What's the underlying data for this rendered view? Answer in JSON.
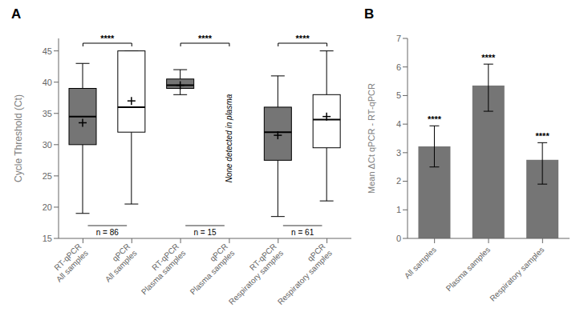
{
  "chart_data": [
    {
      "type": "box",
      "title": "A",
      "categories": [
        "RT-qPCR\nAll samples",
        "qPCR\nAll samples",
        "RT-qPCR\nPlasma samples",
        "qPCR\nPlasma samples",
        "RT-qPCR\nRespiratory samples",
        "qPCR\nRespiratory samples"
      ],
      "median": [
        34.5,
        36.0,
        39.5,
        null,
        32.0,
        34.0
      ],
      "q1": [
        30.0,
        32.0,
        39.0,
        null,
        27.5,
        29.5
      ],
      "q3": [
        39.0,
        45.0,
        40.5,
        null,
        36.0,
        38.0
      ],
      "whisker_low": [
        19.0,
        20.5,
        38.0,
        null,
        18.5,
        21.0
      ],
      "whisker_high": [
        43.0,
        45.0,
        42.0,
        null,
        41.0,
        45.0
      ],
      "mean": [
        33.5,
        37.0,
        39.5,
        null,
        31.5,
        34.5
      ],
      "colors": [
        "#757575",
        "#ffffff",
        "#757575",
        "#ffffff",
        "#757575",
        "#ffffff"
      ],
      "color": "#000000",
      "ylabel": "Cycle Threshold (Ct)",
      "ylim": [
        15,
        47
      ],
      "yticks": [
        15,
        20,
        25,
        30,
        35,
        40,
        45
      ],
      "grid": false,
      "brackets": [
        {
          "from": "RT-qPCR\nAll samples",
          "to": "qPCR\nAll samples",
          "text": "****"
        },
        {
          "from": "RT-qPCR\nPlasma samples",
          "to": "qPCR\nPlasma samples",
          "text": "****"
        },
        {
          "from": "RT-qPCR\nRespiratory samples",
          "to": "qPCR\nRespiratory samples",
          "text": "****"
        }
      ],
      "sample_sizes": [
        {
          "from": "RT-qPCR\nAll samples",
          "to": "qPCR\nAll samples",
          "text": "n = 86"
        },
        {
          "from": "RT-qPCR\nPlasma samples",
          "to": "qPCR\nPlasma samples",
          "text": "n = 15"
        },
        {
          "from": "RT-qPCR\nRespiratory samples",
          "to": "qPCR\nRespiratory samples",
          "text": "n = 61"
        }
      ],
      "annotations": [
        {
          "text": "None detected in plasma",
          "category": "qPCR\nPlasma samples"
        }
      ]
    },
    {
      "type": "bar",
      "title": "B",
      "categories": [
        "All samples",
        "Plasma samples",
        "Respiratory samples"
      ],
      "values": [
        3.22,
        5.35,
        2.75
      ],
      "errors_upper": [
        0.72,
        0.75,
        0.6
      ],
      "errors_lower": [
        0.72,
        0.9,
        0.85
      ],
      "color": "#757575",
      "ylabel": "Mean ΔCt qPCR - RT-qPCR",
      "ylim": [
        0,
        7
      ],
      "yticks": [
        0,
        1,
        2,
        3,
        4,
        5,
        6,
        7
      ],
      "grid": false,
      "significance_labels": [
        "****",
        "****",
        "****"
      ]
    }
  ]
}
